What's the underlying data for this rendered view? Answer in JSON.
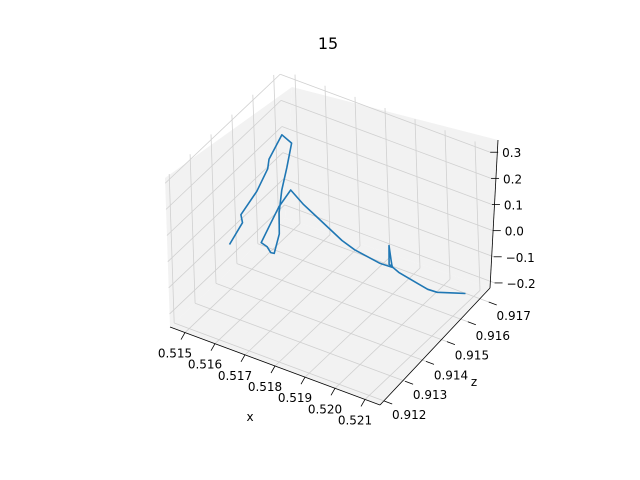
{
  "chart_data": {
    "type": "line",
    "title": "15",
    "xlabel": "x",
    "ylabel": "",
    "zlabel": "z",
    "xlim": [
      0.5145,
      0.5215
    ],
    "ylim": [
      0.9118,
      0.9173
    ],
    "zlim": [
      -0.25,
      0.32
    ],
    "x_ticks": [
      "0.515",
      "0.516",
      "0.517",
      "0.518",
      "0.519",
      "0.520",
      "0.521"
    ],
    "y_ticks": [
      "0.912",
      "0.913",
      "0.914",
      "0.915",
      "0.916",
      "0.917"
    ],
    "z_ticks": [
      "−0.2",
      "−0.1",
      "0.0",
      "0.1",
      "0.2",
      "0.3"
    ],
    "grid": true,
    "line_color": "#1f77b4",
    "pane_color": "#f2f2f2",
    "grid_color": "#d0d0d0",
    "series": [
      {
        "x": [
          0.515,
          0.5151,
          0.5152,
          0.5154,
          0.5155,
          0.5157,
          0.5158,
          0.5159,
          0.516,
          0.5161,
          0.5162,
          0.5164,
          0.5165,
          0.5166,
          0.5167,
          0.5168,
          0.5169,
          0.517,
          0.5172,
          0.5174,
          0.5176,
          0.5178,
          0.518,
          0.5182,
          0.5184,
          0.5186,
          0.5188,
          0.519,
          0.5192,
          0.5194,
          0.5196,
          0.5198,
          0.52,
          0.5201,
          0.5202,
          0.5203,
          0.5204,
          0.5205,
          0.5206,
          0.5207,
          0.5208
        ],
        "y": [
          0.914,
          0.9145,
          0.9143,
          0.9148,
          0.9152,
          0.915,
          0.9155,
          0.9158,
          0.9154,
          0.915,
          0.9147,
          0.9144,
          0.914,
          0.9137,
          0.9134,
          0.913,
          0.9133,
          0.9136,
          0.9139,
          0.9142,
          0.9145,
          0.9148,
          0.9151,
          0.9154,
          0.9157,
          0.916,
          0.9163,
          0.916,
          0.9157,
          0.9154,
          0.9151,
          0.9148,
          0.9145,
          0.9148,
          0.9151,
          0.9154,
          0.9157,
          0.916,
          0.9163,
          0.9166,
          0.9169
        ],
        "z": [
          -0.08,
          -0.03,
          0.02,
          0.08,
          0.14,
          0.2,
          0.26,
          0.21,
          0.15,
          0.1,
          0.04,
          -0.01,
          -0.05,
          -0.02,
          0.03,
          0.08,
          0.13,
          0.18,
          0.23,
          0.16,
          0.1,
          0.04,
          -0.02,
          -0.07,
          -0.11,
          -0.15,
          -0.18,
          -0.14,
          -0.09,
          -0.04,
          0.01,
          0.06,
          0.02,
          -0.03,
          -0.07,
          -0.11,
          -0.15,
          -0.18,
          -0.2,
          -0.22,
          -0.24
        ]
      }
    ]
  }
}
